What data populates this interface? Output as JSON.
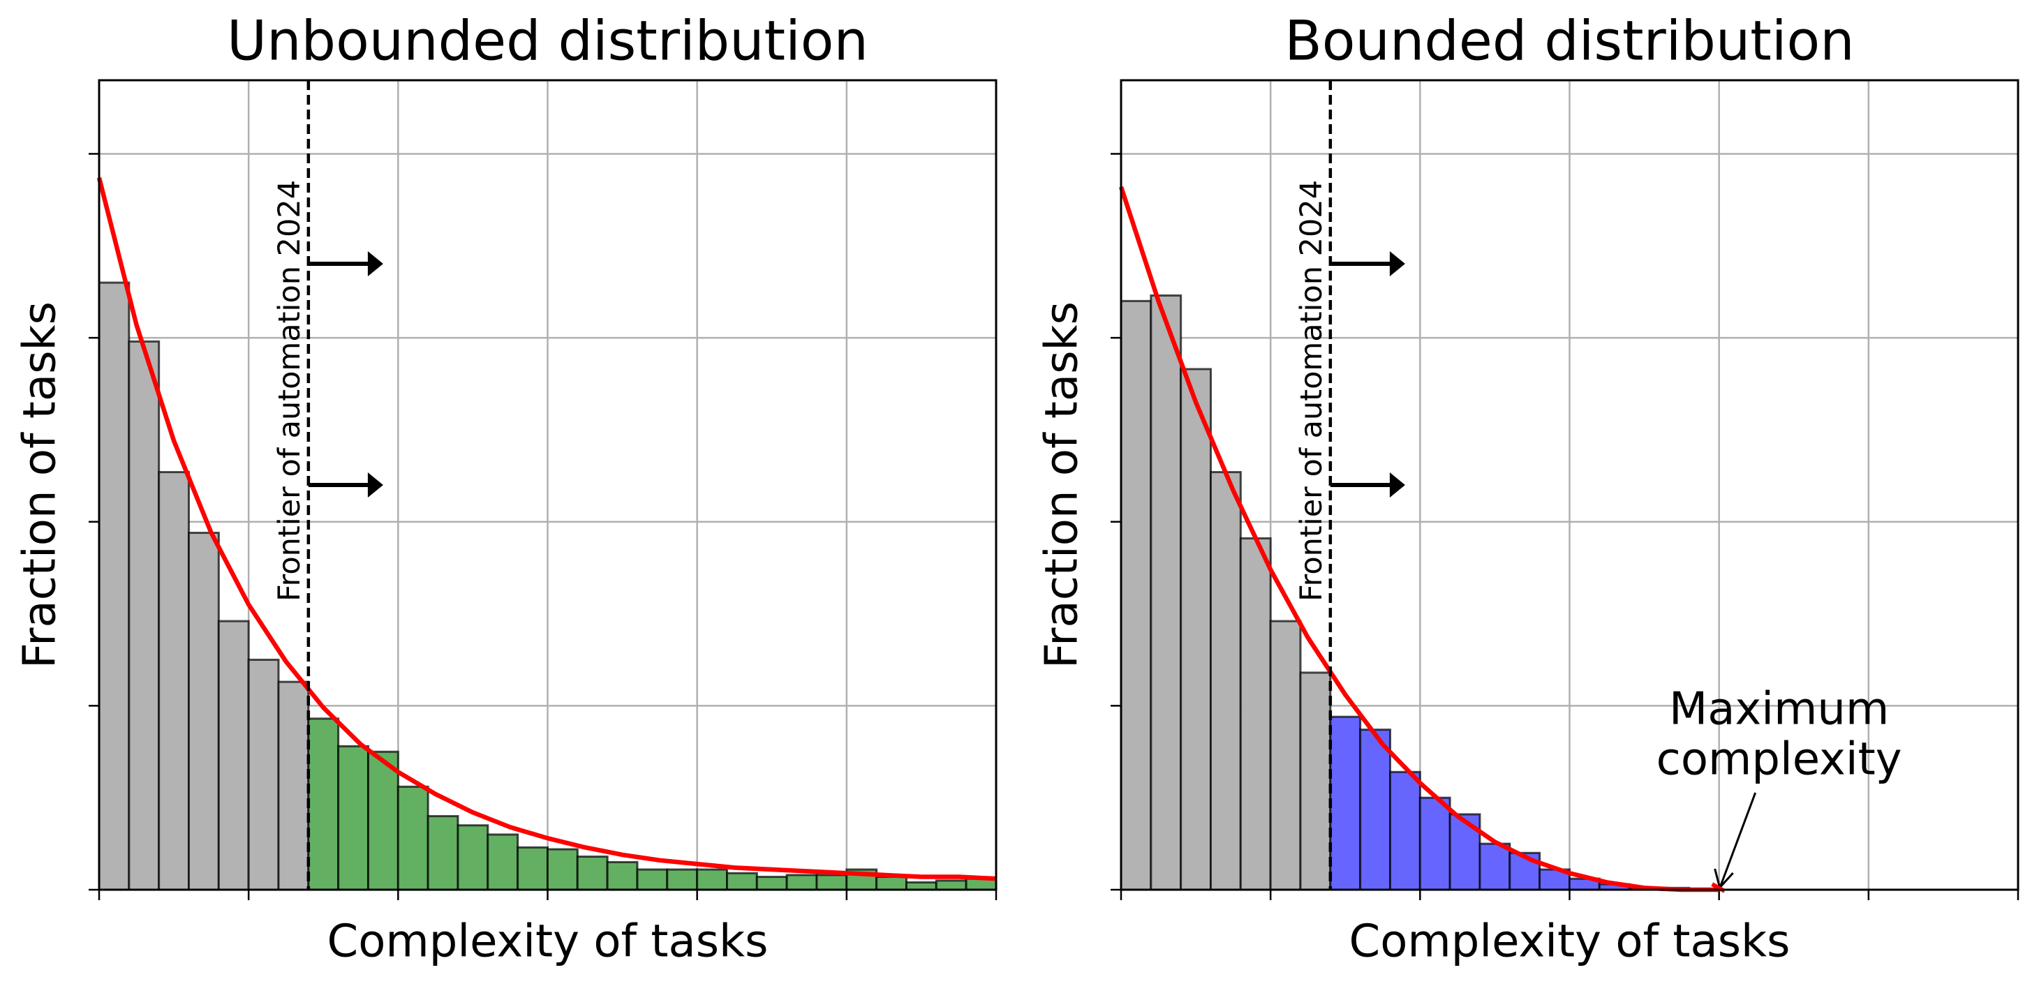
{
  "chart_data": [
    {
      "type": "histogram",
      "title": "Unbounded distribution",
      "x_label": "Complexity of tasks",
      "y_label": "Fraction of tasks",
      "bins": [
        0,
        0.2,
        0.4,
        0.6,
        0.8,
        1.0,
        1.2,
        1.4,
        1.6,
        1.8,
        2.0,
        2.2,
        2.4,
        2.6,
        2.8,
        3.0,
        3.2,
        3.4,
        3.6,
        3.8,
        4.0,
        4.2,
        4.4,
        4.6,
        4.8,
        5.0,
        5.2,
        5.4,
        5.6,
        5.8,
        6.0
      ],
      "values": [
        3.3,
        2.98,
        2.27,
        1.94,
        1.46,
        1.25,
        1.13,
        0.93,
        0.78,
        0.75,
        0.56,
        0.4,
        0.35,
        0.3,
        0.23,
        0.22,
        0.18,
        0.15,
        0.11,
        0.11,
        0.11,
        0.09,
        0.07,
        0.08,
        0.08,
        0.11,
        0.07,
        0.04,
        0.05,
        0.06
      ],
      "color": "#b3b3b3",
      "highlight_color": "#63b063",
      "curve": {
        "color": "#ff0000",
        "x": [
          0,
          0.25,
          0.5,
          0.75,
          1.0,
          1.25,
          1.5,
          1.75,
          2.0,
          2.25,
          2.5,
          2.75,
          3.0,
          3.25,
          3.5,
          3.75,
          4.0,
          4.25,
          4.5,
          4.75,
          5.0,
          5.25,
          5.5,
          5.75,
          6.0
        ],
        "values": [
          3.87,
          3.07,
          2.44,
          1.94,
          1.55,
          1.24,
          0.99,
          0.79,
          0.64,
          0.52,
          0.42,
          0.34,
          0.28,
          0.23,
          0.19,
          0.16,
          0.14,
          0.12,
          0.11,
          0.1,
          0.09,
          0.08,
          0.07,
          0.07,
          0.06
        ]
      },
      "frontier_x": 1.4,
      "frontier_label": "Frontier of automation 2024",
      "xlim": [
        0,
        6
      ],
      "ylim": [
        0,
        4.4
      ],
      "xticks": [
        0,
        1,
        2,
        3,
        4,
        5,
        6
      ],
      "yticks": [
        0,
        1,
        2,
        3,
        4
      ],
      "grid": true
    },
    {
      "type": "histogram",
      "title": "Bounded distribution",
      "x_label": "Complexity of tasks",
      "y_label": "Fraction of tasks",
      "bins": [
        0,
        0.2,
        0.4,
        0.6,
        0.8,
        1.0,
        1.2,
        1.4,
        1.6,
        1.8,
        2.0,
        2.2,
        2.4,
        2.6,
        2.8,
        3.0,
        3.2,
        3.4,
        3.6,
        3.8,
        4.0
      ],
      "values": [
        3.2,
        3.23,
        2.83,
        2.27,
        1.91,
        1.46,
        1.18,
        0.94,
        0.87,
        0.64,
        0.5,
        0.41,
        0.25,
        0.2,
        0.11,
        0.06,
        0.03,
        0.01,
        0.01,
        0
      ],
      "color": "#b3b3b3",
      "highlight_color": "#6666ff",
      "curve": {
        "color": "#ff0000",
        "x": [
          0,
          0.25,
          0.5,
          0.75,
          1.0,
          1.25,
          1.5,
          1.75,
          2.0,
          2.25,
          2.5,
          2.75,
          3.0,
          3.25,
          3.5,
          3.75,
          4.0
        ],
        "values": [
          3.82,
          3.2,
          2.65,
          2.17,
          1.74,
          1.37,
          1.06,
          0.79,
          0.58,
          0.4,
          0.26,
          0.16,
          0.09,
          0.04,
          0.01,
          0,
          0
        ]
      },
      "frontier_x": 1.4,
      "frontier_label": "Frontier of automation 2024",
      "annotation": {
        "lines": [
          "Maximum",
          "complexity"
        ],
        "x": 4.0,
        "y": 0
      },
      "xlim": [
        0,
        6
      ],
      "ylim": [
        0,
        4.4
      ],
      "xticks": [
        0,
        1,
        2,
        3,
        4,
        5,
        6
      ],
      "yticks": [
        0,
        1,
        2,
        3,
        4
      ],
      "grid": true
    }
  ]
}
